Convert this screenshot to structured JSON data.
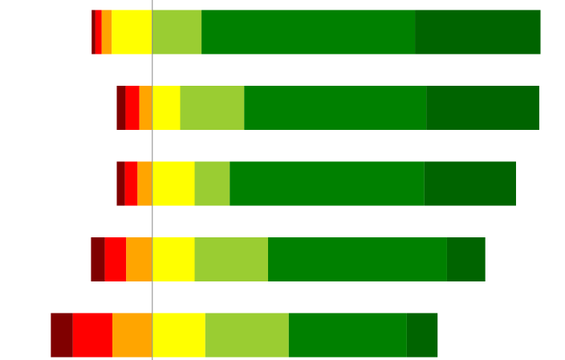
{
  "chart_data": {
    "type": "bar",
    "orientation": "horizontal",
    "stacked": true,
    "diverging": true,
    "grid": false,
    "legend": "none",
    "center_value": 0,
    "categories": [
      "",
      "",
      "",
      "",
      ""
    ],
    "series": [
      {
        "color": "#800000",
        "values": [
          -0.6,
          -1.4,
          -1.3,
          -2.2,
          -3.5
        ]
      },
      {
        "color": "#ff0000",
        "values": [
          -1.0,
          -2.2,
          -2.0,
          -3.4,
          -6.3
        ]
      },
      {
        "color": "#ffa500",
        "values": [
          -1.6,
          -2.0,
          -2.3,
          -4.1,
          -6.3
        ]
      },
      {
        "color": "#ffff00",
        "values": [
          -6.4,
          4.5,
          6.8,
          6.8,
          8.5
        ]
      },
      {
        "color": "#9acd32",
        "values": [
          7.9,
          10.2,
          5.6,
          11.7,
          13.3
        ]
      },
      {
        "color": "#008000",
        "values": [
          34.0,
          29.0,
          31.0,
          28.5,
          18.8
        ]
      },
      {
        "color": "#006400",
        "values": [
          20.0,
          18.0,
          14.6,
          6.1,
          4.9
        ]
      }
    ],
    "xlim": [
      -24.2,
      65.8
    ]
  }
}
